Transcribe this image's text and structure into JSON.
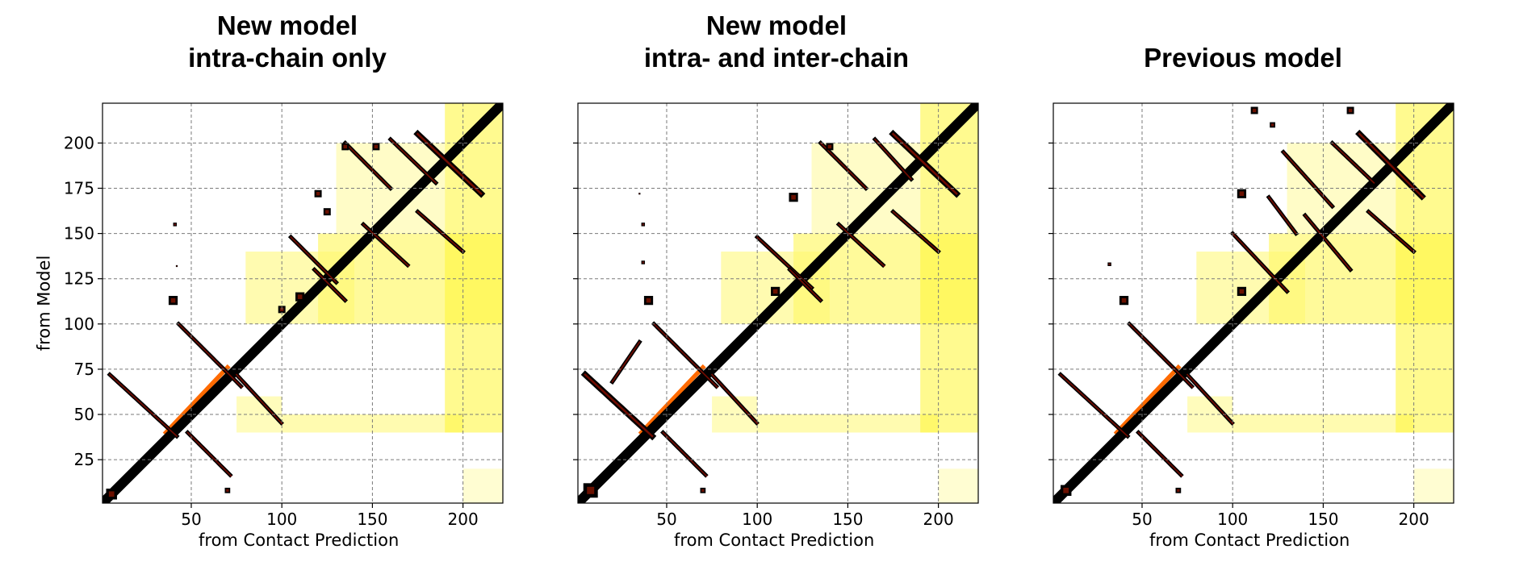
{
  "chart_data": [
    {
      "type": "heatmap",
      "title_lines": [
        "New model",
        "intra-chain only"
      ],
      "xlabel": "from Contact Prediction",
      "ylabel": "from Model",
      "xlim": [
        1,
        222
      ],
      "ylim": [
        1,
        222
      ],
      "xticks": [
        50,
        100,
        150,
        200
      ],
      "yticks": [
        25,
        50,
        75,
        100,
        125,
        150,
        175,
        200
      ],
      "grid": true,
      "colormap": "hot_r",
      "model_contacts": [
        {
          "kind": "diagonal",
          "from": [
            1,
            1
          ],
          "to": [
            222,
            222
          ],
          "width": 4
        },
        {
          "kind": "segment",
          "from": [
            5,
            72
          ],
          "to": [
            42,
            38
          ],
          "width": 2
        },
        {
          "kind": "segment",
          "from": [
            43,
            100
          ],
          "to": [
            78,
            65
          ],
          "width": 2
        },
        {
          "kind": "segment",
          "from": [
            48,
            40
          ],
          "to": [
            72,
            16
          ],
          "width": 2
        },
        {
          "kind": "segment",
          "from": [
            75,
            72
          ],
          "to": [
            100,
            45
          ],
          "width": 2
        },
        {
          "kind": "segment",
          "from": [
            105,
            148
          ],
          "to": [
            130,
            123
          ],
          "width": 2
        },
        {
          "kind": "segment",
          "from": [
            118,
            130
          ],
          "to": [
            135,
            113
          ],
          "width": 2
        },
        {
          "kind": "segment",
          "from": [
            135,
            200
          ],
          "to": [
            160,
            175
          ],
          "width": 2
        },
        {
          "kind": "segment",
          "from": [
            145,
            155
          ],
          "to": [
            170,
            132
          ],
          "width": 2
        },
        {
          "kind": "segment",
          "from": [
            160,
            202
          ],
          "to": [
            185,
            178
          ],
          "width": 2
        },
        {
          "kind": "segment",
          "from": [
            175,
            205
          ],
          "to": [
            210,
            172
          ],
          "width": 3
        },
        {
          "kind": "segment",
          "from": [
            175,
            162
          ],
          "to": [
            200,
            140
          ],
          "width": 2
        },
        {
          "kind": "blob",
          "at": [
            135,
            198
          ],
          "size": 4
        },
        {
          "kind": "blob",
          "at": [
            152,
            198
          ],
          "size": 4
        },
        {
          "kind": "blob",
          "at": [
            120,
            172
          ],
          "size": 4
        },
        {
          "kind": "blob",
          "at": [
            125,
            162
          ],
          "size": 4
        },
        {
          "kind": "blob",
          "at": [
            40,
            113
          ],
          "size": 5
        },
        {
          "kind": "blob",
          "at": [
            41,
            155
          ],
          "size": 2
        },
        {
          "kind": "blob",
          "at": [
            42,
            132
          ],
          "size": 1
        },
        {
          "kind": "blob",
          "at": [
            110,
            115
          ],
          "size": 5
        },
        {
          "kind": "blob",
          "at": [
            100,
            108
          ],
          "size": 4
        },
        {
          "kind": "blob",
          "at": [
            6,
            6
          ],
          "size": 6
        },
        {
          "kind": "blob",
          "at": [
            70,
            8
          ],
          "size": 3
        }
      ],
      "predicted_contacts": [
        {
          "kind": "segment",
          "from": [
            36,
            40
          ],
          "to": [
            70,
            76
          ],
          "width": 2
        },
        {
          "kind": "region",
          "x": [
            100,
            200
          ],
          "y": [
            40,
            50
          ],
          "level": 0.35
        },
        {
          "kind": "region",
          "x": [
            120,
            222
          ],
          "y": [
            100,
            150
          ],
          "level": 0.45
        },
        {
          "kind": "region",
          "x": [
            190,
            222
          ],
          "y": [
            40,
            222
          ],
          "level": 0.5
        },
        {
          "kind": "region",
          "x": [
            80,
            140
          ],
          "y": [
            100,
            140
          ],
          "level": 0.35
        },
        {
          "kind": "region",
          "x": [
            130,
            190
          ],
          "y": [
            150,
            200
          ],
          "level": 0.25
        },
        {
          "kind": "region",
          "x": [
            75,
            100
          ],
          "y": [
            40,
            60
          ],
          "level": 0.3
        },
        {
          "kind": "region",
          "x": [
            200,
            222
          ],
          "y": [
            1,
            20
          ],
          "level": 0.2
        }
      ]
    },
    {
      "type": "heatmap",
      "title_lines": [
        "New model",
        "intra- and inter-chain"
      ],
      "xlabel": "from Contact Prediction",
      "ylabel": "",
      "xlim": [
        1,
        222
      ],
      "ylim": [
        1,
        222
      ],
      "xticks": [
        50,
        100,
        150,
        200
      ],
      "yticks": [],
      "grid": true,
      "colormap": "hot_r",
      "model_contacts": [
        {
          "kind": "diagonal",
          "from": [
            1,
            1
          ],
          "to": [
            222,
            222
          ],
          "width": 4
        },
        {
          "kind": "segment",
          "from": [
            5,
            72
          ],
          "to": [
            42,
            38
          ],
          "width": 3
        },
        {
          "kind": "segment",
          "from": [
            20,
            68
          ],
          "to": [
            35,
            90
          ],
          "width": 2
        },
        {
          "kind": "segment",
          "from": [
            43,
            100
          ],
          "to": [
            78,
            65
          ],
          "width": 2
        },
        {
          "kind": "segment",
          "from": [
            48,
            40
          ],
          "to": [
            72,
            16
          ],
          "width": 2
        },
        {
          "kind": "segment",
          "from": [
            75,
            72
          ],
          "to": [
            100,
            45
          ],
          "width": 2
        },
        {
          "kind": "segment",
          "from": [
            100,
            148
          ],
          "to": [
            130,
            120
          ],
          "width": 2
        },
        {
          "kind": "segment",
          "from": [
            118,
            130
          ],
          "to": [
            135,
            113
          ],
          "width": 2
        },
        {
          "kind": "segment",
          "from": [
            135,
            200
          ],
          "to": [
            160,
            175
          ],
          "width": 2
        },
        {
          "kind": "segment",
          "from": [
            145,
            155
          ],
          "to": [
            170,
            132
          ],
          "width": 2
        },
        {
          "kind": "segment",
          "from": [
            165,
            202
          ],
          "to": [
            185,
            180
          ],
          "width": 2
        },
        {
          "kind": "segment",
          "from": [
            175,
            205
          ],
          "to": [
            210,
            172
          ],
          "width": 3
        },
        {
          "kind": "segment",
          "from": [
            175,
            162
          ],
          "to": [
            200,
            140
          ],
          "width": 2
        },
        {
          "kind": "blob",
          "at": [
            140,
            198
          ],
          "size": 4
        },
        {
          "kind": "blob",
          "at": [
            120,
            170
          ],
          "size": 5
        },
        {
          "kind": "blob",
          "at": [
            40,
            113
          ],
          "size": 5
        },
        {
          "kind": "blob",
          "at": [
            37,
            155
          ],
          "size": 2
        },
        {
          "kind": "blob",
          "at": [
            37,
            134
          ],
          "size": 2
        },
        {
          "kind": "blob",
          "at": [
            35,
            172
          ],
          "size": 1
        },
        {
          "kind": "blob",
          "at": [
            110,
            118
          ],
          "size": 5
        },
        {
          "kind": "blob",
          "at": [
            8,
            8
          ],
          "size": 8
        },
        {
          "kind": "blob",
          "at": [
            70,
            8
          ],
          "size": 3
        }
      ],
      "predicted_contacts": [
        {
          "kind": "segment",
          "from": [
            36,
            40
          ],
          "to": [
            70,
            76
          ],
          "width": 2
        },
        {
          "kind": "region",
          "x": [
            100,
            200
          ],
          "y": [
            40,
            50
          ],
          "level": 0.35
        },
        {
          "kind": "region",
          "x": [
            120,
            222
          ],
          "y": [
            100,
            150
          ],
          "level": 0.45
        },
        {
          "kind": "region",
          "x": [
            190,
            222
          ],
          "y": [
            40,
            222
          ],
          "level": 0.5
        },
        {
          "kind": "region",
          "x": [
            80,
            140
          ],
          "y": [
            100,
            140
          ],
          "level": 0.35
        },
        {
          "kind": "region",
          "x": [
            130,
            190
          ],
          "y": [
            150,
            200
          ],
          "level": 0.25
        },
        {
          "kind": "region",
          "x": [
            75,
            100
          ],
          "y": [
            40,
            60
          ],
          "level": 0.3
        },
        {
          "kind": "region",
          "x": [
            200,
            222
          ],
          "y": [
            1,
            20
          ],
          "level": 0.2
        }
      ]
    },
    {
      "type": "heatmap",
      "title_lines": [
        "Previous model"
      ],
      "xlabel": "from Contact Prediction",
      "ylabel": "",
      "xlim": [
        1,
        222
      ],
      "ylim": [
        1,
        222
      ],
      "xticks": [
        50,
        100,
        150,
        200
      ],
      "yticks": [],
      "grid": true,
      "colormap": "hot_r",
      "model_contacts": [
        {
          "kind": "diagonal",
          "from": [
            1,
            1
          ],
          "to": [
            222,
            222
          ],
          "width": 4
        },
        {
          "kind": "segment",
          "from": [
            5,
            72
          ],
          "to": [
            42,
            38
          ],
          "width": 2
        },
        {
          "kind": "segment",
          "from": [
            43,
            100
          ],
          "to": [
            78,
            65
          ],
          "width": 2
        },
        {
          "kind": "segment",
          "from": [
            48,
            40
          ],
          "to": [
            72,
            16
          ],
          "width": 2
        },
        {
          "kind": "segment",
          "from": [
            75,
            72
          ],
          "to": [
            100,
            45
          ],
          "width": 2
        },
        {
          "kind": "segment",
          "from": [
            100,
            150
          ],
          "to": [
            130,
            118
          ],
          "width": 2
        },
        {
          "kind": "segment",
          "from": [
            120,
            170
          ],
          "to": [
            135,
            150
          ],
          "width": 2
        },
        {
          "kind": "segment",
          "from": [
            128,
            195
          ],
          "to": [
            155,
            165
          ],
          "width": 2
        },
        {
          "kind": "segment",
          "from": [
            140,
            160
          ],
          "to": [
            165,
            130
          ],
          "width": 2
        },
        {
          "kind": "segment",
          "from": [
            155,
            200
          ],
          "to": [
            178,
            178
          ],
          "width": 2
        },
        {
          "kind": "segment",
          "from": [
            170,
            205
          ],
          "to": [
            205,
            170
          ],
          "width": 3
        },
        {
          "kind": "segment",
          "from": [
            175,
            162
          ],
          "to": [
            200,
            140
          ],
          "width": 2
        },
        {
          "kind": "blob",
          "at": [
            112,
            218
          ],
          "size": 4
        },
        {
          "kind": "blob",
          "at": [
            122,
            210
          ],
          "size": 3
        },
        {
          "kind": "blob",
          "at": [
            165,
            218
          ],
          "size": 4
        },
        {
          "kind": "blob",
          "at": [
            105,
            172
          ],
          "size": 5
        },
        {
          "kind": "blob",
          "at": [
            40,
            113
          ],
          "size": 5
        },
        {
          "kind": "blob",
          "at": [
            32,
            133
          ],
          "size": 2
        },
        {
          "kind": "blob",
          "at": [
            105,
            118
          ],
          "size": 5
        },
        {
          "kind": "blob",
          "at": [
            8,
            8
          ],
          "size": 6
        },
        {
          "kind": "blob",
          "at": [
            70,
            8
          ],
          "size": 3
        }
      ],
      "predicted_contacts": [
        {
          "kind": "segment",
          "from": [
            36,
            40
          ],
          "to": [
            70,
            76
          ],
          "width": 2
        },
        {
          "kind": "region",
          "x": [
            100,
            200
          ],
          "y": [
            40,
            50
          ],
          "level": 0.35
        },
        {
          "kind": "region",
          "x": [
            120,
            222
          ],
          "y": [
            100,
            150
          ],
          "level": 0.45
        },
        {
          "kind": "region",
          "x": [
            190,
            222
          ],
          "y": [
            40,
            222
          ],
          "level": 0.5
        },
        {
          "kind": "region",
          "x": [
            80,
            140
          ],
          "y": [
            100,
            140
          ],
          "level": 0.35
        },
        {
          "kind": "region",
          "x": [
            130,
            190
          ],
          "y": [
            150,
            200
          ],
          "level": 0.25
        },
        {
          "kind": "region",
          "x": [
            75,
            100
          ],
          "y": [
            40,
            60
          ],
          "level": 0.3
        },
        {
          "kind": "region",
          "x": [
            200,
            222
          ],
          "y": [
            1,
            20
          ],
          "level": 0.2
        }
      ]
    }
  ]
}
